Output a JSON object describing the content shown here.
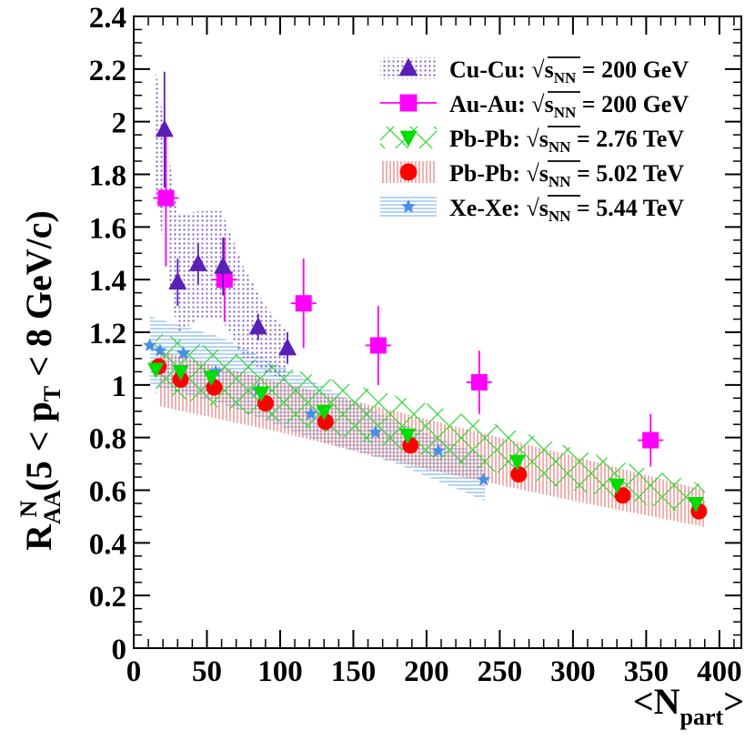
{
  "chart_data": {
    "type": "scatter",
    "title": "",
    "xlabel": {
      "main": "<N",
      "sub": "part",
      "close": ">"
    },
    "ylabel": {
      "R": "R",
      "sup": "N",
      "sub": "AA",
      "mid": " (5 < p",
      "pt_sub": "T",
      "end": " < 8 GeV/c)"
    },
    "xlim": [
      0,
      415
    ],
    "ylim": [
      0,
      2.4
    ],
    "xticks": [
      "0",
      "50",
      "100",
      "150",
      "200",
      "250",
      "300",
      "350",
      "400"
    ],
    "xtick_values": [
      0,
      50,
      100,
      150,
      200,
      250,
      300,
      350,
      400
    ],
    "yticks": [
      "0",
      "0.2",
      "0.4",
      "0.6",
      "0.8",
      "1",
      "1.2",
      "1.4",
      "1.6",
      "1.8",
      "2",
      "2.2",
      "2.4"
    ],
    "ytick_values": [
      0,
      0.2,
      0.4,
      0.6,
      0.8,
      1.0,
      1.2,
      1.4,
      1.6,
      1.8,
      2.0,
      2.2,
      2.4
    ],
    "series": [
      {
        "name": "Cu-Cu",
        "legend_system": "Cu-Cu:",
        "legend_energy": "= 200 GeV",
        "marker": "triangle",
        "color": "#5a1fb5",
        "band_color": "#8a6fc4",
        "x": [
          21,
          30,
          44,
          61,
          85,
          105
        ],
        "y": [
          1.97,
          1.39,
          1.46,
          1.45,
          1.22,
          1.14
        ],
        "yerr": [
          0.22,
          0.09,
          0.08,
          0.11,
          0.05,
          0.06
        ],
        "band_x": [
          15,
          30,
          45,
          60,
          75,
          90,
          105
        ],
        "band_low": [
          1.72,
          1.2,
          1.25,
          1.25,
          1.1,
          1.05,
          1.0
        ],
        "band_high": [
          2.2,
          1.65,
          1.66,
          1.66,
          1.45,
          1.3,
          1.2
        ]
      },
      {
        "name": "Au-Au",
        "legend_system": "Au-Au:",
        "legend_energy": "= 200 GeV",
        "marker": "square",
        "color": "#ff00ff",
        "x": [
          22,
          62,
          116,
          167,
          236,
          353
        ],
        "y": [
          1.71,
          1.4,
          1.31,
          1.15,
          1.01,
          0.79
        ],
        "yerr": [
          0.26,
          0.16,
          0.17,
          0.15,
          0.12,
          0.1
        ]
      },
      {
        "name": "Pb-Pb 2.76",
        "legend_system": "Pb-Pb:",
        "legend_energy": "= 2.76 TeV",
        "marker": "triangle-down",
        "color": "#00dd00",
        "band_color": "#33dd33",
        "x": [
          15,
          32,
          53,
          87,
          130,
          187,
          262,
          330,
          384
        ],
        "y": [
          1.06,
          1.05,
          1.03,
          0.97,
          0.9,
          0.81,
          0.71,
          0.62,
          0.55
        ],
        "band_x": [
          15,
          100,
          200,
          300,
          390
        ],
        "band_low": [
          0.97,
          0.86,
          0.73,
          0.6,
          0.5
        ],
        "band_high": [
          1.2,
          1.07,
          0.93,
          0.76,
          0.62
        ]
      },
      {
        "name": "Pb-Pb 5.02",
        "legend_system": "Pb-Pb:",
        "legend_energy": "= 5.02 TeV",
        "marker": "circle",
        "color": "#ff0000",
        "band_color": "#e25555",
        "x": [
          17,
          32,
          55,
          90,
          131,
          189,
          263,
          334,
          386
        ],
        "y": [
          1.07,
          1.02,
          0.99,
          0.93,
          0.86,
          0.77,
          0.66,
          0.58,
          0.52
        ],
        "band_x": [
          17,
          100,
          200,
          300,
          390
        ],
        "band_low": [
          0.92,
          0.82,
          0.68,
          0.56,
          0.46
        ],
        "band_high": [
          1.13,
          1.01,
          0.87,
          0.73,
          0.6
        ]
      },
      {
        "name": "Xe-Xe",
        "legend_system": "Xe-Xe:",
        "legend_energy": "= 5.44 TeV",
        "marker": "star",
        "color": "#4a90e2",
        "band_color": "#5a9fe0",
        "x": [
          11,
          18,
          34,
          56,
          85,
          121,
          165,
          208,
          239
        ],
        "y": [
          1.15,
          1.13,
          1.12,
          1.05,
          0.98,
          0.89,
          0.82,
          0.75,
          0.64
        ],
        "band_x": [
          11,
          60,
          120,
          180,
          240
        ],
        "band_low": [
          1.0,
          0.93,
          0.8,
          0.7,
          0.56
        ],
        "band_high": [
          1.26,
          1.18,
          1.02,
          0.86,
          0.73
        ]
      }
    ],
    "legend": {
      "position": "top-right",
      "sqrt_label": "s",
      "sqrt_sub": "NN"
    }
  }
}
